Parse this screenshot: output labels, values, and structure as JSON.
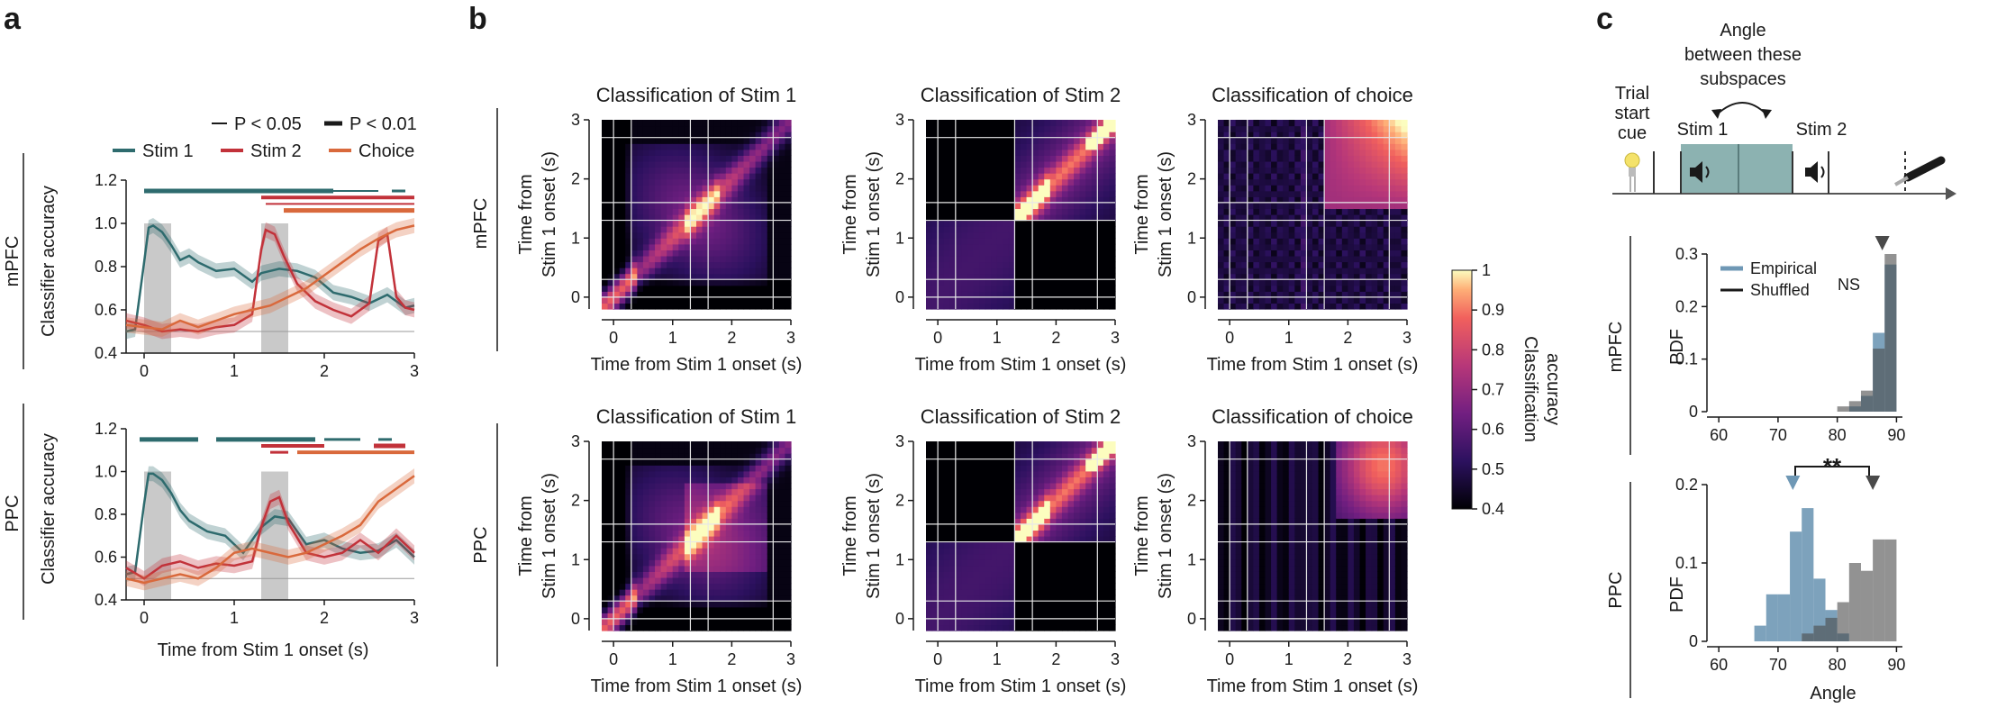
{
  "panels": {
    "a": "a",
    "b": "b",
    "c": "c"
  },
  "colors": {
    "stim1": "#2e6b6e",
    "stim2": "#c2323a",
    "choice": "#d9693c",
    "empirical": "#6f98b5",
    "shuffled": "#4a4a4a",
    "grey_bar": "#c9c9c9"
  },
  "panel_a": {
    "sig_legend": {
      "p005": "P < 0.05",
      "p001": "P < 0.01"
    },
    "legend": {
      "stim1": "Stim 1",
      "stim2": "Stim 2",
      "choice": "Choice"
    },
    "ylabel": "Classifier accuracy",
    "xlabel": "Time from Stim 1 onset (s)",
    "region_labels": [
      "mPFC",
      "PPC"
    ],
    "yticks": [
      "0.4",
      "0.6",
      "0.8",
      "1.0",
      "1.2"
    ],
    "xticks": [
      "0",
      "1",
      "2",
      "3"
    ]
  },
  "panel_b": {
    "titles": [
      "Classification of Stim 1",
      "Classification of Stim 2",
      "Classification of choice"
    ],
    "region_labels": [
      "mPFC",
      "PPC"
    ],
    "ylabel_line1": "Time from",
    "ylabel_line2": "Stim 1 onset (s)",
    "xlabel": "Time from Stim 1 onset (s)",
    "ticks": [
      "0",
      "1",
      "2",
      "3"
    ],
    "colorbar_label_line1": "Classification",
    "colorbar_label_line2": "accuracy",
    "colorbar_ticks": [
      "1",
      "0.9",
      "0.8",
      "0.7",
      "0.6",
      "0.5",
      "0.4"
    ]
  },
  "panel_c": {
    "diagram": {
      "angle_line1": "Angle",
      "angle_line2": "between these",
      "angle_line3": "subspaces",
      "trial_line1": "Trial",
      "trial_line2": "start",
      "trial_line3": "cue",
      "stim1": "Stim 1",
      "stim2": "Stim 2"
    },
    "legend": {
      "empirical": "Empirical",
      "shuffled": "Shuffled"
    },
    "ns": "NS",
    "sig": "**",
    "ylabel": "PDF",
    "xlabel": "Angle",
    "region_labels": [
      "mPFC",
      "PPC"
    ],
    "xticks": [
      "60",
      "70",
      "80",
      "90"
    ],
    "yticks_mpfc": [
      "0",
      "0.1",
      "0.2",
      "0.3"
    ],
    "yticks_ppc": [
      "0",
      "0.1",
      "0.2"
    ]
  },
  "chart_data": [
    {
      "type": "line",
      "panel": "a-mPFC",
      "x_range": [
        -0.2,
        3
      ],
      "ylim": [
        0.4,
        1.2
      ],
      "series": [
        {
          "name": "Stim 1",
          "x": [
            -0.2,
            -0.1,
            0,
            0.05,
            0.1,
            0.2,
            0.3,
            0.4,
            0.5,
            0.6,
            0.8,
            1.0,
            1.2,
            1.3,
            1.5,
            1.7,
            1.9,
            2.1,
            2.3,
            2.5,
            2.7,
            2.9,
            3.0
          ],
          "values": [
            0.5,
            0.51,
            0.82,
            0.98,
            0.99,
            0.96,
            0.9,
            0.83,
            0.85,
            0.82,
            0.78,
            0.79,
            0.73,
            0.77,
            0.79,
            0.78,
            0.75,
            0.68,
            0.66,
            0.63,
            0.67,
            0.61,
            0.62
          ]
        },
        {
          "name": "Stim 2",
          "x": [
            -0.2,
            0,
            0.2,
            0.4,
            0.6,
            0.8,
            1.0,
            1.2,
            1.3,
            1.35,
            1.45,
            1.55,
            1.7,
            1.9,
            2.1,
            2.3,
            2.5,
            2.6,
            2.7,
            2.8,
            2.9,
            3.0
          ],
          "values": [
            0.55,
            0.53,
            0.5,
            0.51,
            0.5,
            0.52,
            0.53,
            0.58,
            0.88,
            0.97,
            0.95,
            0.85,
            0.72,
            0.64,
            0.6,
            0.57,
            0.63,
            0.92,
            0.95,
            0.66,
            0.61,
            0.6
          ]
        },
        {
          "name": "Choice",
          "x": [
            -0.2,
            0,
            0.2,
            0.4,
            0.6,
            0.8,
            1.0,
            1.2,
            1.4,
            1.6,
            1.8,
            2.0,
            2.2,
            2.4,
            2.6,
            2.8,
            3.0
          ],
          "values": [
            0.53,
            0.52,
            0.51,
            0.55,
            0.52,
            0.55,
            0.58,
            0.6,
            0.62,
            0.66,
            0.7,
            0.76,
            0.82,
            0.88,
            0.93,
            0.97,
            0.99
          ]
        }
      ]
    },
    {
      "type": "line",
      "panel": "a-PPC",
      "x_range": [
        -0.2,
        3
      ],
      "ylim": [
        0.4,
        1.2
      ],
      "series": [
        {
          "name": "Stim 1",
          "x": [
            -0.2,
            -0.1,
            0,
            0.05,
            0.1,
            0.2,
            0.3,
            0.4,
            0.5,
            0.7,
            0.9,
            1.1,
            1.3,
            1.45,
            1.6,
            1.8,
            2.0,
            2.2,
            2.4,
            2.6,
            2.8,
            3.0
          ],
          "values": [
            0.52,
            0.53,
            0.85,
            0.99,
            0.99,
            0.96,
            0.9,
            0.82,
            0.77,
            0.72,
            0.7,
            0.62,
            0.74,
            0.79,
            0.78,
            0.66,
            0.68,
            0.64,
            0.62,
            0.63,
            0.68,
            0.6
          ]
        },
        {
          "name": "Stim 2",
          "x": [
            -0.2,
            0,
            0.2,
            0.4,
            0.6,
            0.8,
            1.0,
            1.2,
            1.3,
            1.4,
            1.5,
            1.6,
            1.8,
            2.0,
            2.2,
            2.4,
            2.6,
            2.8,
            3.0
          ],
          "values": [
            0.55,
            0.5,
            0.56,
            0.58,
            0.55,
            0.57,
            0.56,
            0.58,
            0.74,
            0.86,
            0.88,
            0.76,
            0.62,
            0.6,
            0.62,
            0.68,
            0.62,
            0.7,
            0.62
          ]
        },
        {
          "name": "Choice",
          "x": [
            -0.2,
            0,
            0.2,
            0.4,
            0.6,
            0.8,
            1.0,
            1.2,
            1.4,
            1.6,
            1.8,
            2.0,
            2.2,
            2.4,
            2.6,
            2.8,
            3.0
          ],
          "values": [
            0.5,
            0.48,
            0.5,
            0.52,
            0.5,
            0.55,
            0.62,
            0.64,
            0.62,
            0.6,
            0.62,
            0.66,
            0.7,
            0.75,
            0.86,
            0.92,
            0.98
          ]
        }
      ]
    },
    {
      "type": "heatmap",
      "panel": "b",
      "rows": [
        "mPFC",
        "PPC"
      ],
      "columns": [
        "Classification of Stim 1",
        "Classification of Stim 2",
        "Classification of choice"
      ],
      "x_range": [
        -0.2,
        3
      ],
      "y_range": [
        -0.2,
        3
      ],
      "color_range": [
        0.4,
        1
      ]
    },
    {
      "type": "bar",
      "panel": "c-mPFC",
      "bin_edges": [
        60,
        62,
        64,
        66,
        68,
        70,
        72,
        74,
        76,
        78,
        80,
        82,
        84,
        86,
        88,
        90
      ],
      "series": [
        {
          "name": "Empirical",
          "values": [
            0,
            0,
            0,
            0,
            0,
            0,
            0,
            0,
            0,
            0,
            0,
            0.01,
            0.03,
            0.15,
            0.28
          ]
        },
        {
          "name": "Shuffled",
          "values": [
            0,
            0,
            0,
            0,
            0,
            0,
            0,
            0,
            0,
            0,
            0.01,
            0.02,
            0.04,
            0.12,
            0.3
          ]
        }
      ],
      "ylim": [
        0,
        0.3
      ]
    },
    {
      "type": "bar",
      "panel": "c-PPC",
      "bin_edges": [
        60,
        62,
        64,
        66,
        68,
        70,
        72,
        74,
        76,
        78,
        80,
        82,
        84,
        86,
        88,
        90
      ],
      "series": [
        {
          "name": "Empirical",
          "values": [
            0,
            0,
            0,
            0.02,
            0.06,
            0.06,
            0.14,
            0.17,
            0.08,
            0.04,
            0.01,
            0,
            0,
            0,
            0
          ]
        },
        {
          "name": "Shuffled",
          "values": [
            0,
            0,
            0,
            0,
            0,
            0,
            0,
            0.01,
            0.02,
            0.03,
            0.05,
            0.1,
            0.09,
            0.13,
            0.13
          ]
        }
      ],
      "ylim": [
        0,
        0.2
      ]
    }
  ]
}
